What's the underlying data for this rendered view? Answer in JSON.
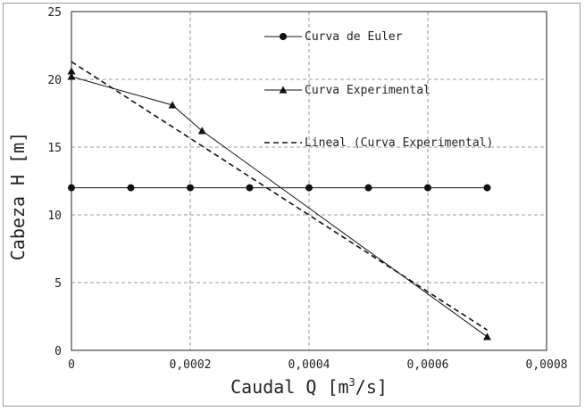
{
  "chart_data": {
    "type": "line",
    "xlabel": "Caudal Q [m3/s]",
    "xlabel_parts": {
      "main": "Caudal Q [m",
      "sup": "3",
      "tail": "/s]"
    },
    "ylabel": "Cabeza H [m]",
    "xlim": [
      0,
      0.0008
    ],
    "ylim": [
      0,
      25
    ],
    "x_ticks": [
      0,
      0.0002,
      0.0004,
      0.0006,
      0.0008
    ],
    "x_tick_labels": [
      "0",
      "0,0002",
      "0,0004",
      "0,0006",
      "0,0008"
    ],
    "y_ticks": [
      0,
      5,
      10,
      15,
      20,
      25
    ],
    "y_tick_labels": [
      "0",
      "5",
      "10",
      "15",
      "20",
      "25"
    ],
    "grid": true,
    "legend_position": "top-right",
    "series": [
      {
        "name": "Curva de Euler",
        "style": "solid",
        "marker": "circle",
        "x": [
          0,
          0.0001,
          0.0002,
          0.0003,
          0.0004,
          0.0005,
          0.0006,
          0.0007
        ],
        "y": [
          12,
          12,
          12,
          12,
          12,
          12,
          12,
          12
        ]
      },
      {
        "name": "Curva Experimental",
        "style": "solid",
        "marker": "triangle",
        "x": [
          0,
          0.00017,
          0.00022,
          0.0007
        ],
        "y": [
          20.2,
          18.1,
          16.2,
          1.0
        ]
      },
      {
        "name": "Lineal (Curva Experimental)",
        "style": "dashed",
        "marker": "none",
        "x": [
          0,
          0.0007
        ],
        "y": [
          21.3,
          1.5
        ]
      }
    ],
    "extra_points": [
      {
        "series": "Curva Experimental",
        "x": 0,
        "y": 20.6
      }
    ]
  }
}
